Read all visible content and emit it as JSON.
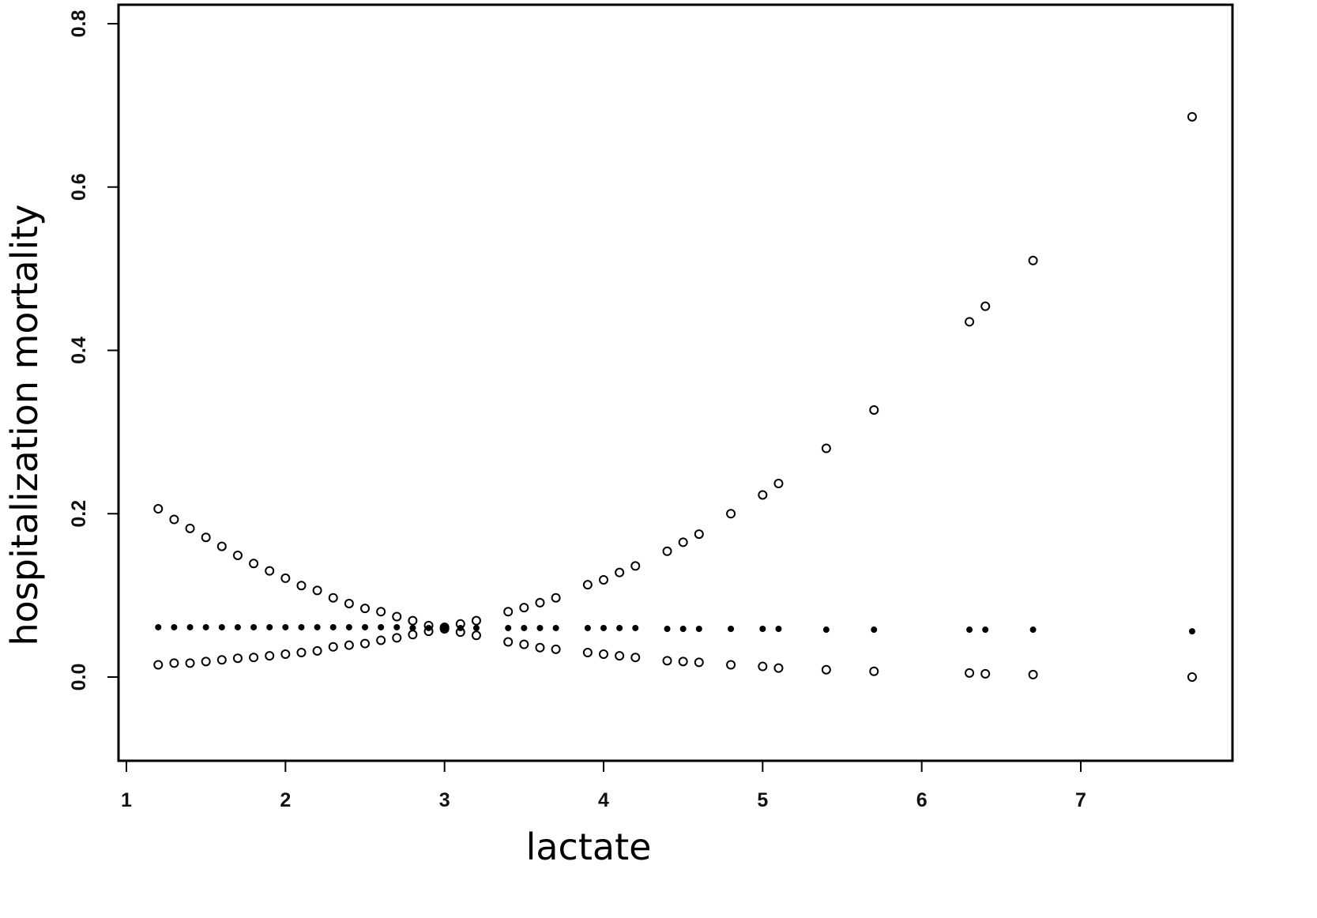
{
  "chart_data": {
    "type": "scatter",
    "title": "",
    "xlabel": "lactate",
    "ylabel": "hospitalization mortality",
    "xlim": [
      1,
      7.9
    ],
    "ylim": [
      -0.1,
      0.825
    ],
    "x_ticks": [
      "1",
      "2",
      "3",
      "4",
      "5",
      "6",
      "7"
    ],
    "y_ticks": [
      "0.0",
      "0.2",
      "0.4",
      "0.6",
      "0.8"
    ],
    "grid": false,
    "legend": "none",
    "x": [
      1.2,
      1.3,
      1.4,
      1.5,
      1.6,
      1.7,
      1.8,
      1.9,
      2.0,
      2.1,
      2.2,
      2.3,
      2.4,
      2.5,
      2.6,
      2.7,
      2.8,
      2.9,
      3.0,
      3.1,
      3.2,
      3.4,
      3.5,
      3.6,
      3.7,
      3.9,
      4.0,
      4.1,
      4.2,
      4.4,
      4.5,
      4.6,
      4.8,
      5.0,
      5.1,
      5.4,
      5.7,
      6.3,
      6.4,
      6.7,
      7.7
    ],
    "series": [
      {
        "marker": "filled-dot",
        "values": [
          0.061,
          0.061,
          0.061,
          0.061,
          0.061,
          0.061,
          0.061,
          0.061,
          0.061,
          0.061,
          0.061,
          0.061,
          0.061,
          0.061,
          0.061,
          0.061,
          0.06,
          0.06,
          0.06,
          0.06,
          0.06,
          0.06,
          0.06,
          0.06,
          0.06,
          0.06,
          0.06,
          0.06,
          0.06,
          0.059,
          0.059,
          0.059,
          0.059,
          0.059,
          0.059,
          0.058,
          0.058,
          0.058,
          0.058,
          0.058,
          0.056
        ]
      },
      {
        "marker": "open-circle",
        "values": [
          0.206,
          0.193,
          0.182,
          0.171,
          0.16,
          0.149,
          0.139,
          0.13,
          0.121,
          0.112,
          0.106,
          0.097,
          0.09,
          0.084,
          0.08,
          0.074,
          0.069,
          0.063,
          0.061,
          0.065,
          0.069,
          0.08,
          0.085,
          0.091,
          0.097,
          0.113,
          0.119,
          0.128,
          0.136,
          0.154,
          0.165,
          0.175,
          0.2,
          0.223,
          0.237,
          0.28,
          0.327,
          0.435,
          0.454,
          0.51,
          0.686
        ]
      },
      {
        "marker": "open-circle",
        "values": [
          0.015,
          0.017,
          0.017,
          0.019,
          0.021,
          0.023,
          0.024,
          0.026,
          0.028,
          0.03,
          0.032,
          0.037,
          0.039,
          0.041,
          0.045,
          0.048,
          0.052,
          0.056,
          0.059,
          0.055,
          0.051,
          0.043,
          0.04,
          0.036,
          0.034,
          0.03,
          0.028,
          0.026,
          0.024,
          0.02,
          0.019,
          0.018,
          0.015,
          0.013,
          0.011,
          0.009,
          0.007,
          0.005,
          0.004,
          0.003,
          0.0
        ]
      }
    ],
    "colors": {
      "ink": "#000000",
      "background": "#ffffff"
    }
  }
}
